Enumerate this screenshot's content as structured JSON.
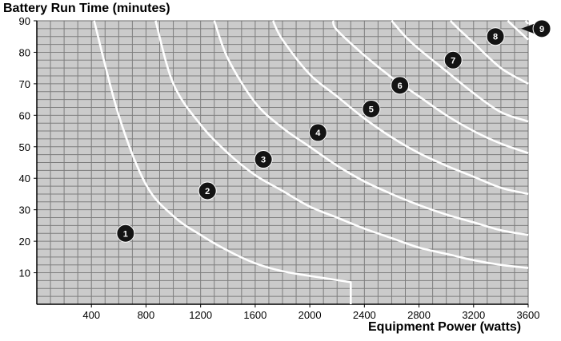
{
  "chart_data": {
    "type": "line",
    "title": "Battery Run Time (minutes)",
    "xlabel": "Equipment Power (watts)",
    "ylabel": "Battery Run Time (minutes)",
    "xlim": [
      0,
      3600
    ],
    "ylim": [
      0,
      90
    ],
    "x_ticks": [
      400,
      800,
      1200,
      1600,
      2000,
      2400,
      2800,
      3200,
      3600
    ],
    "y_ticks": [
      10,
      20,
      30,
      40,
      50,
      60,
      70,
      80,
      90
    ],
    "grid": true,
    "colors": {
      "plot_bg": "#cbcbcb",
      "grid": "#7d7d7d",
      "curve": "#ffffff",
      "marker": "#141414"
    },
    "series": [
      {
        "label": "1",
        "label_at": [
          650,
          22.5
        ],
        "points": [
          [
            420,
            90
          ],
          [
            600,
            60
          ],
          [
            800,
            38
          ],
          [
            1000,
            28
          ],
          [
            1200,
            22
          ],
          [
            1400,
            17
          ],
          [
            1600,
            13
          ],
          [
            1800,
            10.5
          ],
          [
            2000,
            9
          ],
          [
            2150,
            8
          ],
          [
            2300,
            7
          ],
          [
            2300,
            0
          ]
        ]
      },
      {
        "label": "2",
        "label_at": [
          1250,
          36
        ],
        "points": [
          [
            870,
            90
          ],
          [
            1000,
            70
          ],
          [
            1200,
            57
          ],
          [
            1400,
            48
          ],
          [
            1600,
            41
          ],
          [
            1800,
            36
          ],
          [
            2000,
            31
          ],
          [
            2200,
            27.5
          ],
          [
            2400,
            24
          ],
          [
            2600,
            21
          ],
          [
            2800,
            18
          ],
          [
            3000,
            16
          ],
          [
            3200,
            14
          ],
          [
            3400,
            12.5
          ],
          [
            3600,
            11.5
          ]
        ]
      },
      {
        "label": "3",
        "label_at": [
          1660,
          46
        ],
        "points": [
          [
            1300,
            90
          ],
          [
            1400,
            78
          ],
          [
            1600,
            64
          ],
          [
            1800,
            56
          ],
          [
            2000,
            50
          ],
          [
            2200,
            44
          ],
          [
            2400,
            39
          ],
          [
            2600,
            35
          ],
          [
            2800,
            31.5
          ],
          [
            3000,
            28.5
          ],
          [
            3200,
            26
          ],
          [
            3400,
            23.5
          ],
          [
            3600,
            22
          ]
        ]
      },
      {
        "label": "4",
        "label_at": [
          2060,
          54.5
        ],
        "points": [
          [
            1730,
            90
          ],
          [
            1800,
            84
          ],
          [
            2000,
            73
          ],
          [
            2200,
            66
          ],
          [
            2400,
            59
          ],
          [
            2600,
            53
          ],
          [
            2800,
            48
          ],
          [
            3000,
            44
          ],
          [
            3200,
            40.5
          ],
          [
            3400,
            37
          ],
          [
            3600,
            35
          ]
        ]
      },
      {
        "label": "5",
        "label_at": [
          2450,
          62
        ],
        "points": [
          [
            2170,
            90
          ],
          [
            2200,
            87
          ],
          [
            2400,
            79
          ],
          [
            2600,
            72
          ],
          [
            2800,
            66
          ],
          [
            3000,
            60
          ],
          [
            3200,
            55
          ],
          [
            3400,
            51
          ],
          [
            3600,
            48
          ]
        ]
      },
      {
        "label": "6",
        "label_at": [
          2660,
          69.5
        ],
        "points": [
          [
            2600,
            90
          ],
          [
            2700,
            85
          ],
          [
            2800,
            81
          ],
          [
            3000,
            74
          ],
          [
            3200,
            67
          ],
          [
            3400,
            61
          ],
          [
            3600,
            58
          ]
        ]
      },
      {
        "label": "7",
        "label_at": [
          3050,
          77.5
        ],
        "points": [
          [
            3030,
            90
          ],
          [
            3100,
            87
          ],
          [
            3200,
            83
          ],
          [
            3400,
            75
          ],
          [
            3600,
            70
          ]
        ]
      },
      {
        "label": "8",
        "label_at": [
          3360,
          85
        ],
        "points": [
          [
            3450,
            90
          ],
          [
            3500,
            88
          ],
          [
            3600,
            84
          ]
        ]
      },
      {
        "label": "9",
        "label_at": [
          3700,
          87.5
        ],
        "points": [
          [
            3580,
            90
          ],
          [
            3600,
            89
          ]
        ]
      }
    ]
  }
}
